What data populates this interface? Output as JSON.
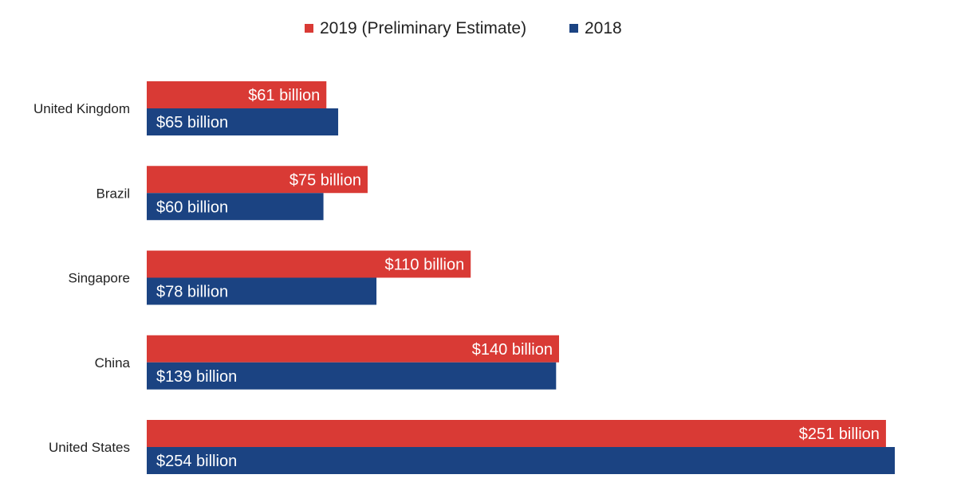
{
  "chart_data": {
    "type": "bar",
    "orientation": "horizontal",
    "categories": [
      "United Kingdom",
      "Brazil",
      "Singapore",
      "China",
      "United States"
    ],
    "series": [
      {
        "name": "2019 (Preliminary Estimate)",
        "color": "#d93a35",
        "values": [
          61,
          75,
          110,
          140,
          251
        ],
        "labels": [
          "$61 billion",
          "$75 billion",
          "$110 billion",
          "$140 billion",
          "$251 billion"
        ],
        "label_align": "end"
      },
      {
        "name": "2018",
        "color": "#1b4382",
        "values": [
          65,
          60,
          78,
          139,
          254
        ],
        "labels": [
          "$65 billion",
          "$60 billion",
          "$78 billion",
          "$139 billion",
          "$254 billion"
        ],
        "label_align": "start"
      }
    ],
    "xlim": [
      0,
      254
    ],
    "grid": false,
    "legend_position": "top-center"
  }
}
